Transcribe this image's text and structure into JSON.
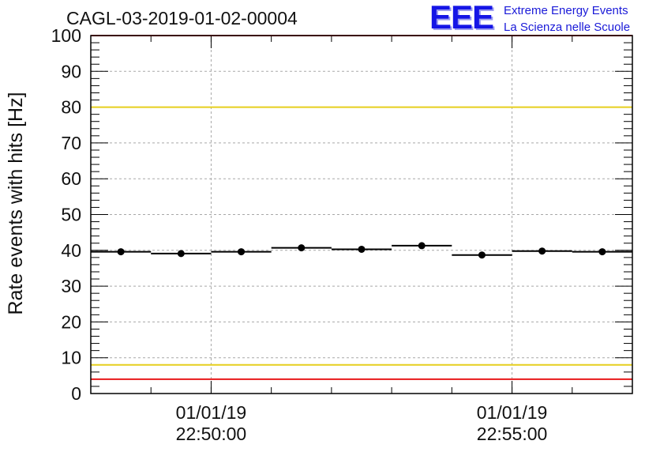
{
  "header": {
    "run_title": "CAGL-03-2019-01-02-00004",
    "logo_text": "EEE",
    "logo_line1": "Extreme Energy Events",
    "logo_line2": "La Scienza nelle Scuole"
  },
  "chart_data": {
    "type": "scatter",
    "title": "CAGL-03-2019-01-02-00004",
    "xlabel": "",
    "ylabel": "Rate events with hits [Hz]",
    "ylim": [
      0,
      100
    ],
    "yticks": [
      "0",
      "10",
      "20",
      "30",
      "40",
      "50",
      "60",
      "70",
      "80",
      "90",
      "100"
    ],
    "xlim_minutes": [
      0,
      9
    ],
    "xtick_labels": [
      {
        "x_minutes": 2,
        "date": "01/01/19",
        "time": "22:50:00"
      },
      {
        "x_minutes": 7,
        "date": "01/01/19",
        "time": "22:55:00"
      }
    ],
    "grid": true,
    "series": [
      {
        "x_minutes": [
          0.5,
          1.5,
          2.5,
          3.5,
          4.5,
          5.5,
          6.5,
          7.5,
          8.5
        ],
        "x_halfwidth_minutes": 0.5,
        "values": [
          39.6,
          39.1,
          39.6,
          40.7,
          40.3,
          41.3,
          38.7,
          39.8,
          39.6
        ]
      }
    ],
    "reference_lines": [
      {
        "y": 100,
        "color": "#e8191a"
      },
      {
        "y": 80,
        "color": "#e6cf1e"
      },
      {
        "y": 8,
        "color": "#e6cf1e"
      },
      {
        "y": 4,
        "color": "#e8191a"
      }
    ]
  }
}
